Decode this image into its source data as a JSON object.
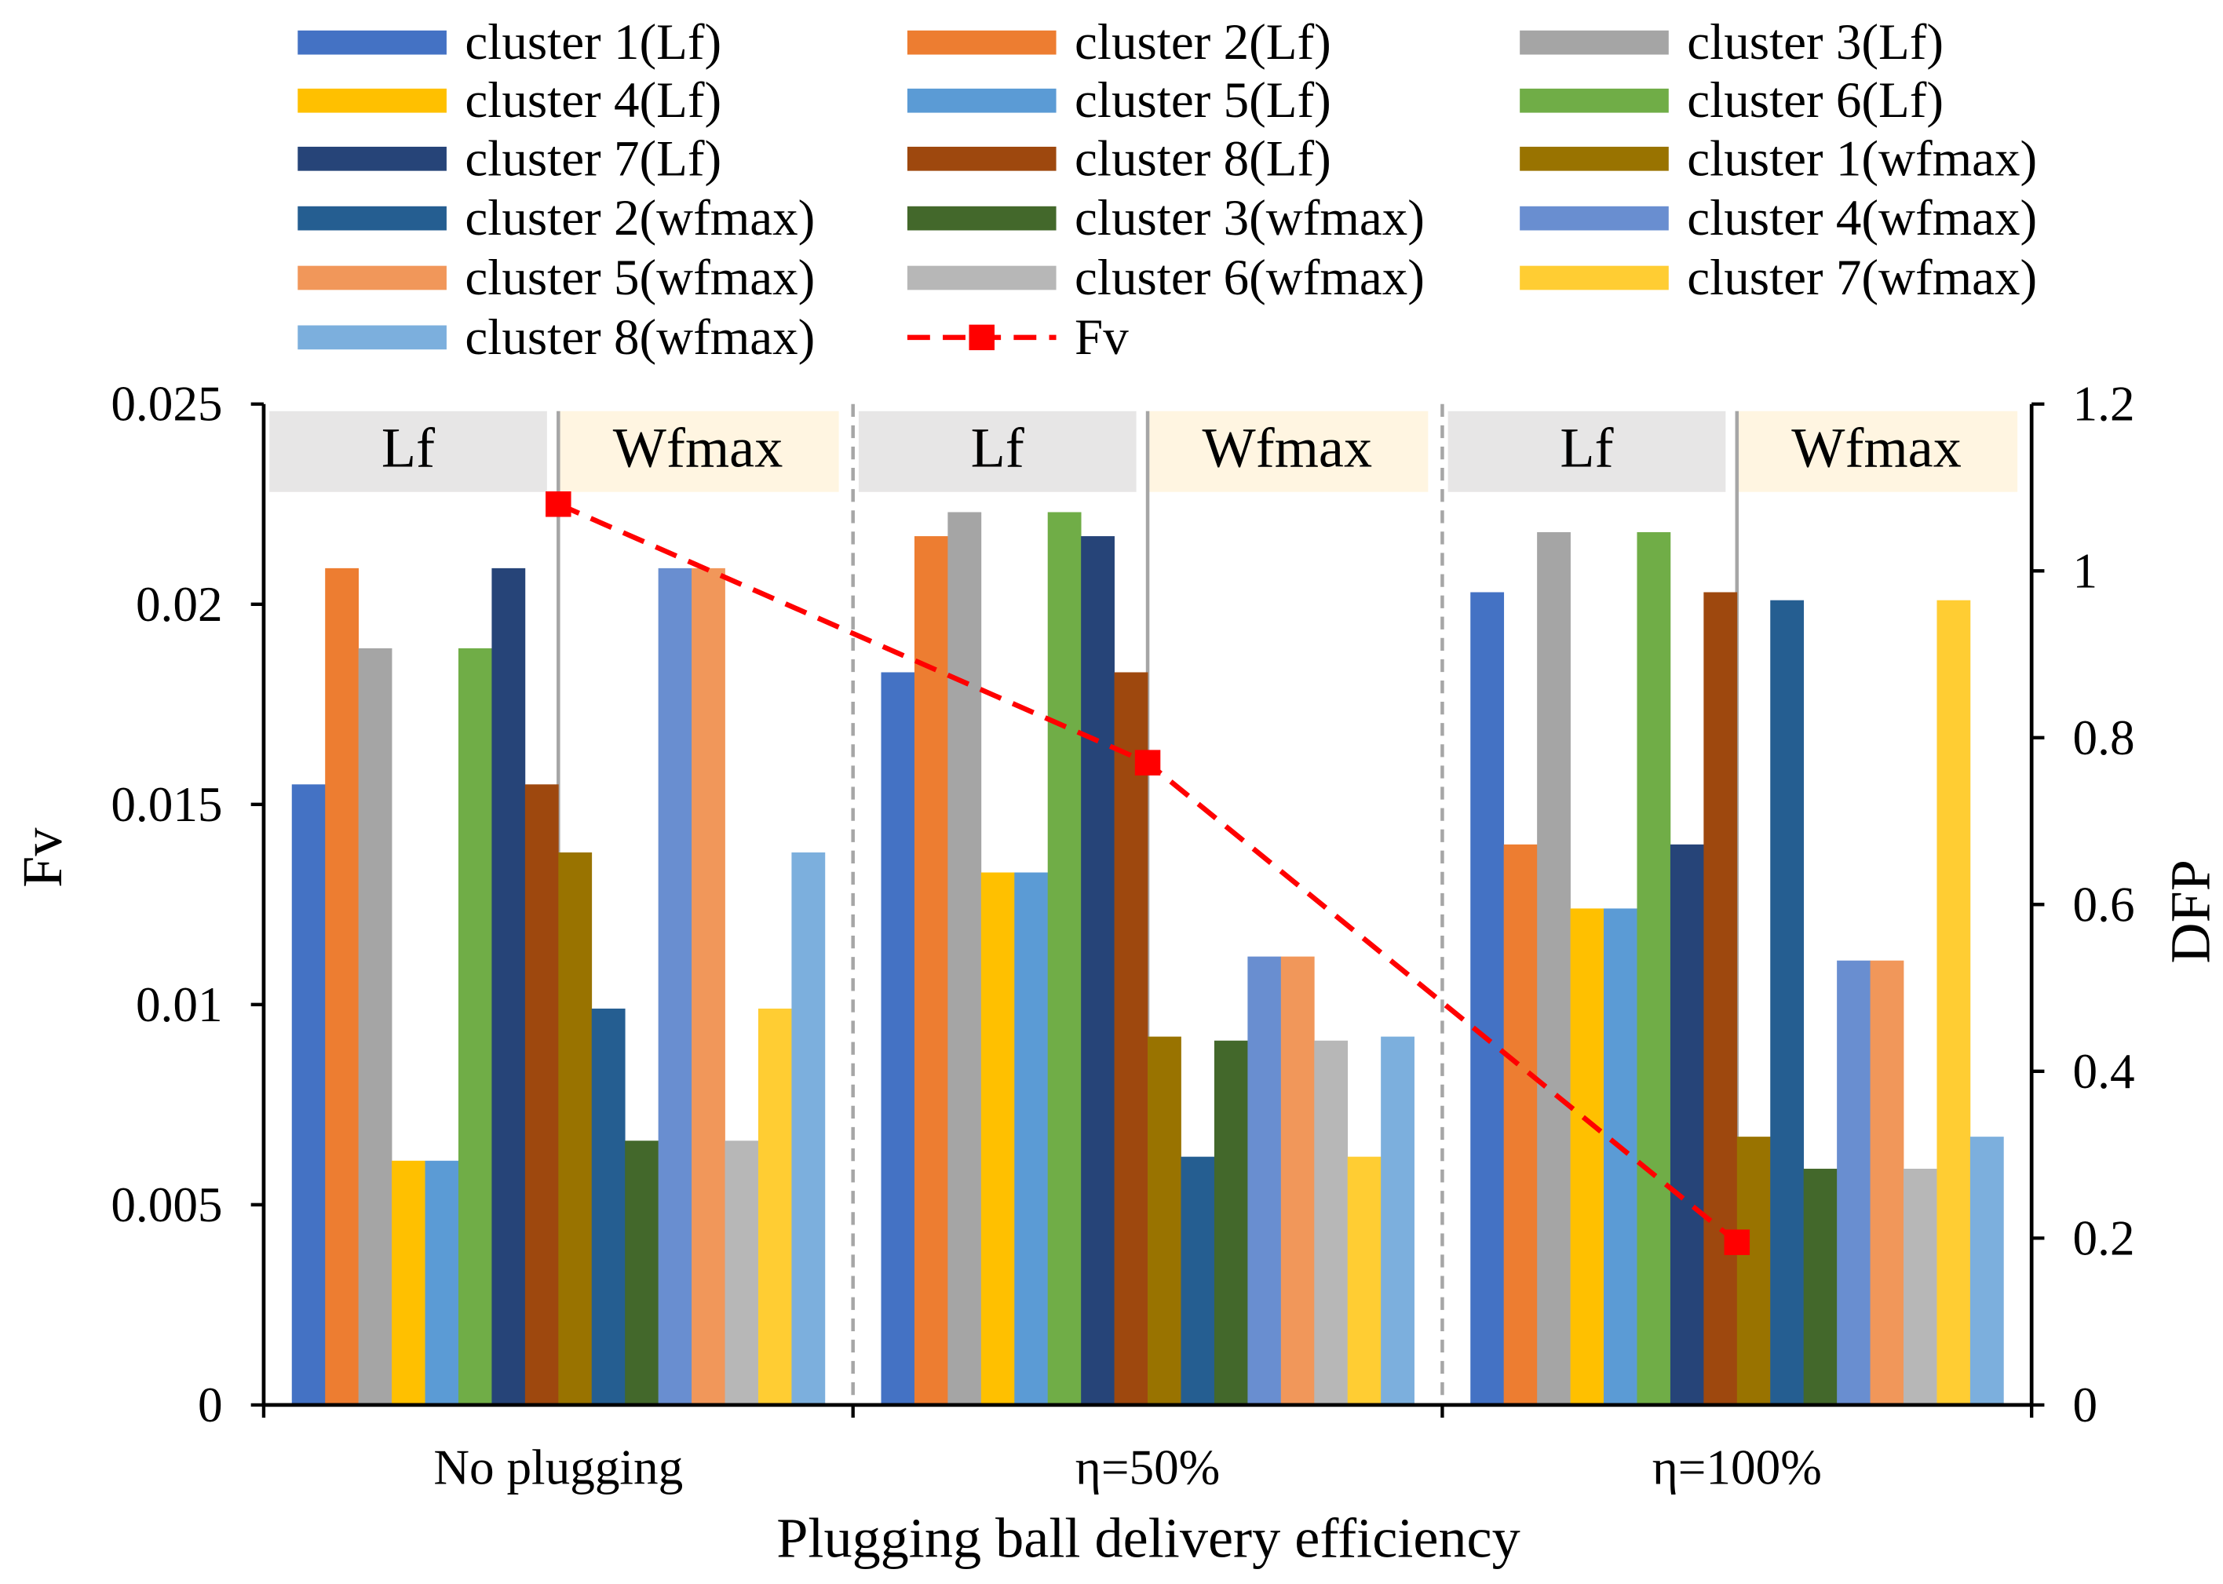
{
  "chart_data": {
    "type": "bar",
    "xlabel": "Plugging ball delivery efficiency",
    "ylabel": "Fv",
    "y2label": "DFP",
    "ylim": [
      0,
      0.025
    ],
    "y2lim": [
      0,
      1.2
    ],
    "yticks": [
      0,
      0.005,
      0.01,
      0.015,
      0.02,
      0.025
    ],
    "y2ticks": [
      0,
      0.2,
      0.4,
      0.6,
      0.8,
      1,
      1.2
    ],
    "categories": [
      "No plugging",
      "η=50%",
      "η=100%"
    ],
    "group_labels": [
      "Lf",
      "Wfmax"
    ],
    "header_colors": [
      "#E7E6E6",
      "#FFF5E1"
    ],
    "legend": "top",
    "series": [
      {
        "name": "cluster 1(Lf)",
        "color": "#4472C4",
        "values": [
          0.0155,
          0.0183,
          0.0203
        ]
      },
      {
        "name": "cluster 2(Lf)",
        "color": "#ED7D31",
        "values": [
          0.0209,
          0.0217,
          0.014
        ]
      },
      {
        "name": "cluster 3(Lf)",
        "color": "#A5A5A5",
        "values": [
          0.0189,
          0.0223,
          0.0218
        ]
      },
      {
        "name": "cluster 4(Lf)",
        "color": "#FFC000",
        "values": [
          0.0061,
          0.0133,
          0.0124
        ]
      },
      {
        "name": "cluster 5(Lf)",
        "color": "#5B9BD5",
        "values": [
          0.0061,
          0.0133,
          0.0124
        ]
      },
      {
        "name": "cluster 6(Lf)",
        "color": "#70AD47",
        "values": [
          0.0189,
          0.0223,
          0.0218
        ]
      },
      {
        "name": "cluster 7(Lf)",
        "color": "#264478",
        "values": [
          0.0209,
          0.0217,
          0.014
        ]
      },
      {
        "name": "cluster 8(Lf)",
        "color": "#9E480E",
        "values": [
          0.0155,
          0.0183,
          0.0203
        ]
      },
      {
        "name": "cluster 1(wfmax)",
        "color": "#997300",
        "values": [
          0.0138,
          0.0092,
          0.0067
        ]
      },
      {
        "name": "cluster 2(wfmax)",
        "color": "#255E91",
        "values": [
          0.0099,
          0.0062,
          0.0201
        ]
      },
      {
        "name": "cluster 3(wfmax)",
        "color": "#43682B",
        "values": [
          0.0066,
          0.0091,
          0.0059
        ]
      },
      {
        "name": "cluster 4(wfmax)",
        "color": "#698ED0",
        "values": [
          0.0209,
          0.0112,
          0.0111
        ]
      },
      {
        "name": "cluster 5(wfmax)",
        "color": "#F1975A",
        "values": [
          0.0209,
          0.0112,
          0.0111
        ]
      },
      {
        "name": "cluster 6(wfmax)",
        "color": "#B7B7B7",
        "values": [
          0.0066,
          0.0091,
          0.0059
        ]
      },
      {
        "name": "cluster 7(wfmax)",
        "color": "#FFCD33",
        "values": [
          0.0099,
          0.0062,
          0.0201
        ]
      },
      {
        "name": "cluster 8(wfmax)",
        "color": "#7CAFDD",
        "values": [
          0.0138,
          0.0092,
          0.0067
        ]
      }
    ],
    "line": {
      "name": "Fv",
      "color": "#FF0000",
      "values": [
        1.08,
        0.77,
        0.195
      ]
    }
  }
}
